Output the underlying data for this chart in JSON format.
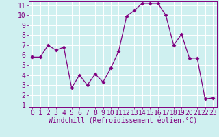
{
  "x": [
    0,
    1,
    2,
    3,
    4,
    5,
    6,
    7,
    8,
    9,
    10,
    11,
    12,
    13,
    14,
    15,
    16,
    17,
    18,
    19,
    20,
    21,
    22,
    23
  ],
  "y": [
    5.8,
    5.8,
    7.0,
    6.5,
    6.8,
    2.7,
    4.0,
    3.0,
    4.1,
    3.3,
    4.7,
    6.4,
    9.9,
    10.5,
    11.2,
    11.2,
    11.2,
    10.0,
    7.0,
    8.1,
    5.7,
    5.7,
    1.6,
    1.7
  ],
  "line_color": "#800080",
  "marker": "D",
  "marker_size": 2.5,
  "xlabel": "Windchill (Refroidissement éolien,°C)",
  "ylim": [
    0.8,
    11.4
  ],
  "xlim": [
    -0.5,
    23.5
  ],
  "yticks": [
    1,
    2,
    3,
    4,
    5,
    6,
    7,
    8,
    9,
    10,
    11
  ],
  "xticks": [
    0,
    1,
    2,
    3,
    4,
    5,
    6,
    7,
    8,
    9,
    10,
    11,
    12,
    13,
    14,
    15,
    16,
    17,
    18,
    19,
    20,
    21,
    22,
    23
  ],
  "bg_color": "#cff0f0",
  "grid_color": "#ffffff",
  "tick_color": "#800080",
  "label_color": "#800080",
  "font_size_xlabel": 7,
  "font_size_ticks": 7
}
